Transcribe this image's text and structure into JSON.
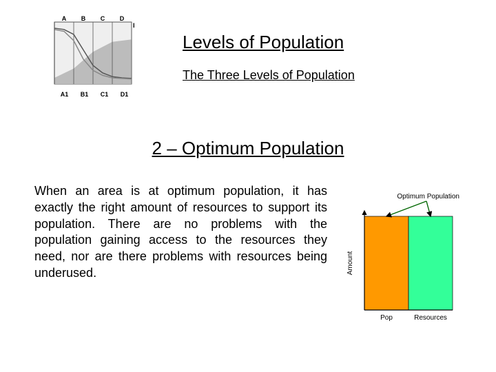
{
  "header": {
    "title1": "Levels of Population",
    "title2": "The Three Levels of Population"
  },
  "mini_graph": {
    "type": "line",
    "col_labels_top": [
      "A",
      "B",
      "C",
      "D",
      "E?"
    ],
    "col_labels_bottom": [
      "A1",
      "B1",
      "C1",
      "D1"
    ],
    "xlim": [
      0,
      4
    ],
    "ylim": [
      0,
      100
    ],
    "divider_x": [
      0,
      1,
      2,
      3,
      4
    ],
    "series": [
      {
        "name": "s1",
        "color": "#555555",
        "width": 1.5,
        "points": [
          [
            0,
            90
          ],
          [
            0.5,
            88
          ],
          [
            1,
            80
          ],
          [
            1.5,
            55
          ],
          [
            2,
            30
          ],
          [
            2.5,
            18
          ],
          [
            3,
            12
          ],
          [
            3.5,
            10
          ],
          [
            4,
            9
          ]
        ]
      },
      {
        "name": "s2",
        "color": "#888888",
        "width": 1.5,
        "points": [
          [
            0,
            88
          ],
          [
            0.5,
            85
          ],
          [
            1,
            70
          ],
          [
            1.5,
            40
          ],
          [
            2,
            22
          ],
          [
            2.5,
            14
          ],
          [
            3,
            10
          ],
          [
            3.5,
            9
          ],
          [
            4,
            8
          ]
        ]
      },
      {
        "name": "s3_fill",
        "color": "#bcbcbc",
        "fill_to": 0,
        "points": [
          [
            0,
            10
          ],
          [
            1,
            25
          ],
          [
            2,
            52
          ],
          [
            3,
            68
          ],
          [
            4,
            72
          ]
        ]
      }
    ],
    "bg": "#efefef",
    "frame": "#555555",
    "label_fontsize": 9,
    "top_label_fontsize": 9
  },
  "section": {
    "heading": "2 – Optimum Population",
    "body": "When an area is at optimum population, it has exactly the right amount of resources to support its population. There are no problems with the population gaining access to the resources they need, nor are there problems with resources being underused."
  },
  "right_chart": {
    "type": "bar",
    "annotation_label": "Optimum Population",
    "y_axis_label": "Amount",
    "categories": [
      "Pop",
      "Resources"
    ],
    "values": [
      100,
      100
    ],
    "bar_colors": [
      "#ff9900",
      "#33ff99"
    ],
    "ylim": [
      0,
      100
    ],
    "arrow_color": "#006600",
    "text_color": "#000000",
    "axis_color": "#000000",
    "label_fontsize": 10,
    "annotation_fontsize": 10
  }
}
